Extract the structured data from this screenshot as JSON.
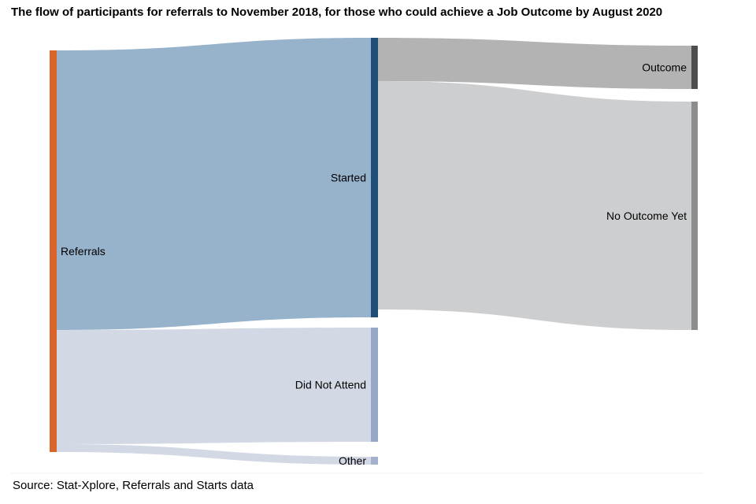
{
  "title": "The flow of participants for referrals to November 2018, for those who could achieve a Job Outcome by August 2020",
  "source": "Source: Stat-Xplore, Referrals and Starts data",
  "chart_data": {
    "type": "sankey",
    "nodes": [
      {
        "id": "referrals",
        "label": "Referrals",
        "color": "#d9652b"
      },
      {
        "id": "started",
        "label": "Started",
        "color": "#1f4e79"
      },
      {
        "id": "dna",
        "label": "Did Not Attend",
        "color": "#96a8c8"
      },
      {
        "id": "other",
        "label": "Other",
        "color": "#a3b1cd"
      },
      {
        "id": "outcome",
        "label": "Outcome",
        "color": "#4d4d4d"
      },
      {
        "id": "no_outcome",
        "label": "No Outcome Yet",
        "color": "#8c8c8c"
      }
    ],
    "links": [
      {
        "source": "referrals",
        "target": "started",
        "value": 71,
        "color": "#97b2cb"
      },
      {
        "source": "referrals",
        "target": "dna",
        "value": 29,
        "color": "#d3d8e5"
      },
      {
        "source": "referrals",
        "target": "other",
        "value": 2,
        "color": "#d3d8e5"
      },
      {
        "source": "started",
        "target": "outcome",
        "value": 11,
        "color": "#b3b3b3"
      },
      {
        "source": "started",
        "target": "no_outcome",
        "value": 58,
        "color": "#cdcecf"
      }
    ]
  }
}
